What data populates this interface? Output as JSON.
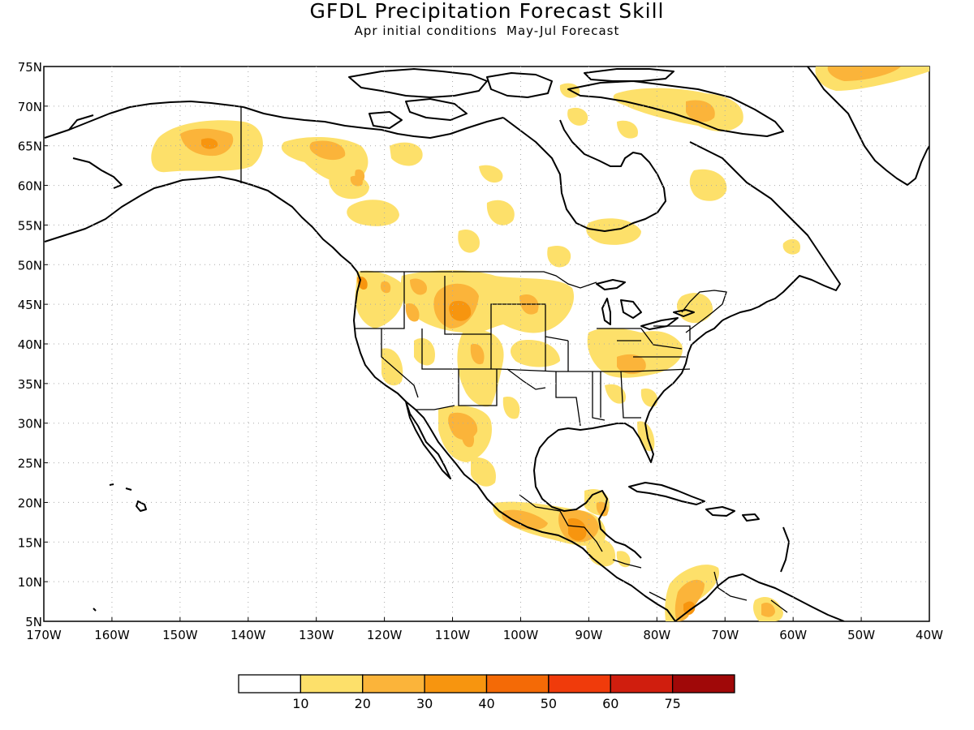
{
  "title": "GFDL Precipitation Forecast Skill",
  "subtitle": "Apr initial conditions  May-Jul Forecast",
  "map": {
    "region": "North America",
    "lon_range": [
      -170,
      -40
    ],
    "lat_range": [
      5,
      75
    ],
    "lat_labels": [
      "75N",
      "70N",
      "65N",
      "60N",
      "55N",
      "50N",
      "45N",
      "40N",
      "35N",
      "30N",
      "25N",
      "20N",
      "15N",
      "10N",
      "5N"
    ],
    "lon_labels": [
      "170W",
      "160W",
      "150W",
      "140W",
      "130W",
      "120W",
      "110W",
      "100W",
      "90W",
      "80W",
      "70W",
      "60W",
      "50W",
      "40W"
    ],
    "gridlines": "dotted",
    "colors": {
      "land_outline": "#000000",
      "gridline": "#aaaaaa",
      "skill_10_20": "#fde06a",
      "skill_20_30": "#fbb43a",
      "skill_30_40": "#f7950f"
    }
  },
  "colorbar": {
    "labels": [
      "10",
      "20",
      "30",
      "40",
      "50",
      "60",
      "75"
    ],
    "colors": [
      "#ffffff",
      "#fde06a",
      "#fbb43a",
      "#f7950f",
      "#f46a06",
      "#f03b0b",
      "#d01e0e",
      "#a00808"
    ]
  }
}
